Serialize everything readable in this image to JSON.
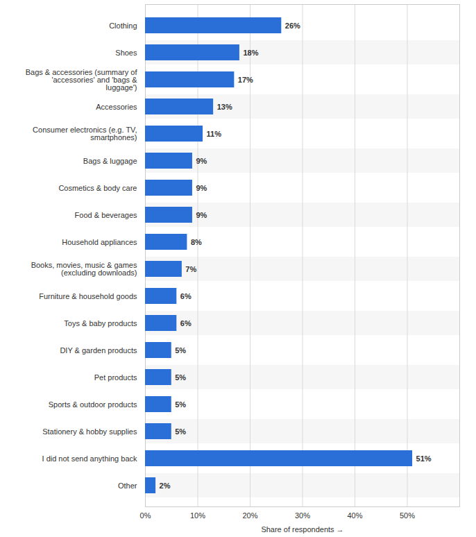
{
  "chart_data": {
    "type": "bar",
    "orientation": "horizontal",
    "categories": [
      "Clothing",
      "Shoes",
      "Bags & accessories (summary of 'accessories' and 'bags & luggage')",
      "Accessories",
      "Consumer electronics (e.g. TV, smartphones)",
      "Bags & luggage",
      "Cosmetics & body care",
      "Food & beverages",
      "Household appliances",
      "Books, movies, music & games (excluding downloads)",
      "Furniture & household goods",
      "Toys & baby products",
      "DIY & garden products",
      "Pet products",
      "Sports & outdoor products",
      "Stationery & hobby supplies",
      "I did not send anything back",
      "Other"
    ],
    "values": [
      26,
      18,
      17,
      13,
      11,
      9,
      9,
      9,
      8,
      7,
      6,
      6,
      5,
      5,
      5,
      5,
      51,
      2
    ],
    "value_labels": [
      "26%",
      "18%",
      "17%",
      "13%",
      "11%",
      "9%",
      "9%",
      "9%",
      "8%",
      "7%",
      "6%",
      "6%",
      "5%",
      "5%",
      "5%",
      "5%",
      "51%",
      "2%"
    ],
    "data_labels": true,
    "color": "#2a6ed8",
    "x_label": "Share of respondents",
    "xlim": [
      0,
      60
    ],
    "xticks": [
      {
        "value": 0,
        "label": "0%"
      },
      {
        "value": 10,
        "label": "10%"
      },
      {
        "value": 20,
        "label": "20%"
      },
      {
        "value": 30,
        "label": "30%"
      },
      {
        "value": 40,
        "label": "40%"
      },
      {
        "value": 50,
        "label": "50%"
      }
    ],
    "grid": true
  }
}
